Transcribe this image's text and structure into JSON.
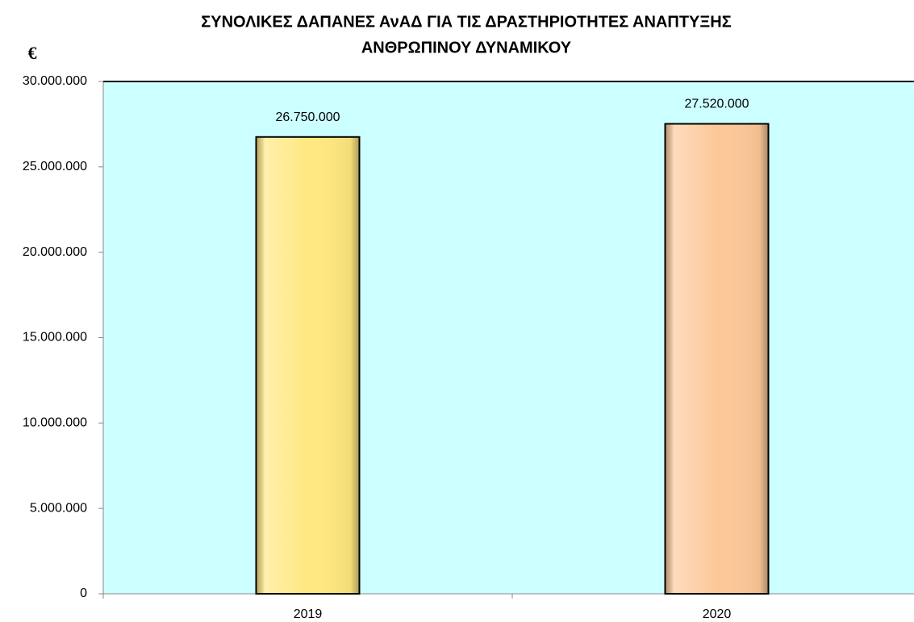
{
  "chart_data": {
    "type": "bar",
    "title": [
      "ΣΥΝΟΛΙΚΕΣ ΔΑΠΑΝΕΣ ΑνΑΔ ΓΙΑ ΤΙΣ ΔΡΑΣΤΗΡΙΟΤΗΤΕΣ ΑΝΑΠΤΥΞΗΣ",
      "ΑΝΘΡΩΠΙΝΟΥ ΔΥΝΑΜΙΚΟΥ"
    ],
    "y_label": "€",
    "categories": [
      "2019",
      "2020"
    ],
    "values": [
      26750000,
      27520000
    ],
    "value_labels": [
      "26.750.000",
      "27.520.000"
    ],
    "colors": [
      "#ffe880",
      "#fdc899"
    ],
    "background": "#ccffff",
    "ylim": [
      0,
      30000000
    ],
    "yticks": [
      0,
      {
        "value": 5000000,
        "label": "5.000.000"
      },
      {
        "value": 10000000,
        "label": "10.000.000"
      },
      {
        "value": 15000000,
        "label": "15.000.000"
      },
      {
        "value": 20000000,
        "label": "20.000.000"
      },
      {
        "value": 25000000,
        "label": "25.000.000"
      },
      {
        "value": 30000000,
        "label": "30.000.000"
      }
    ],
    "grid": false
  }
}
